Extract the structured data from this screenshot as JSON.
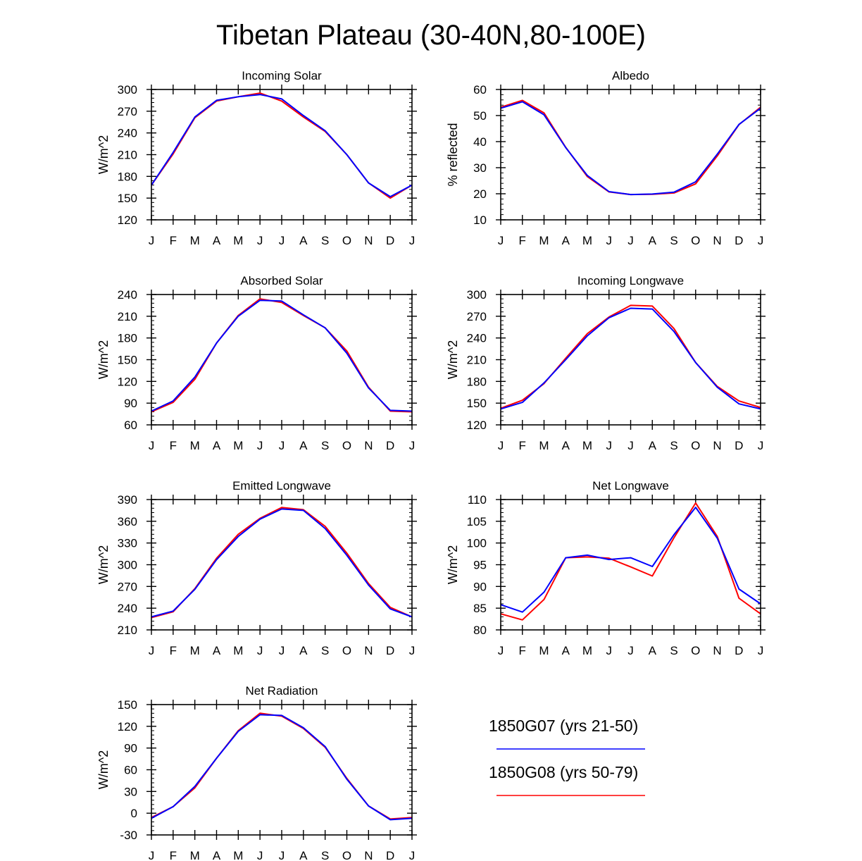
{
  "title": "Tibetan Plateau (30-40N,80-100E)",
  "colors": {
    "axis": "#000000",
    "series_G07": "#0000ff",
    "series_G08": "#ff0000"
  },
  "legend": [
    {
      "name": "1850G07 (yrs 21-50)",
      "color": "#0000ff"
    },
    {
      "name": "1850G08 (yrs 50-79)",
      "color": "#ff0000"
    }
  ],
  "chart_data": [
    {
      "type": "line",
      "title": "Incoming Solar",
      "xlabel": "",
      "ylabel": "W/m^2",
      "categories": [
        "J",
        "F",
        "M",
        "A",
        "M",
        "J",
        "J",
        "A",
        "S",
        "O",
        "N",
        "D",
        "J"
      ],
      "ylim": [
        120,
        300
      ],
      "yticks": [
        120,
        150,
        180,
        210,
        240,
        270,
        300
      ],
      "series": [
        {
          "name": "1850G07 (yrs 21-50)",
          "values": [
            168,
            213,
            262,
            285,
            290,
            293,
            287,
            264,
            243,
            210,
            171,
            152,
            168
          ]
        },
        {
          "name": "1850G08 (yrs 50-79)",
          "values": [
            168,
            211,
            261,
            284,
            290,
            295,
            284,
            262,
            242,
            210,
            171,
            150,
            168
          ]
        }
      ]
    },
    {
      "type": "line",
      "title": "Albedo",
      "xlabel": "",
      "ylabel": "% reflected",
      "categories": [
        "J",
        "F",
        "M",
        "A",
        "M",
        "J",
        "J",
        "A",
        "S",
        "O",
        "N",
        "D",
        "J"
      ],
      "ylim": [
        10,
        60
      ],
      "yticks": [
        10,
        20,
        30,
        40,
        50,
        60
      ],
      "series": [
        {
          "name": "1850G07 (yrs 21-50)",
          "values": [
            52.8,
            55.3,
            50.3,
            37.7,
            27.0,
            20.8,
            19.7,
            19.9,
            20.6,
            24.6,
            35.2,
            46.6,
            52.8
          ]
        },
        {
          "name": "1850G08 (yrs 50-79)",
          "values": [
            53.2,
            55.8,
            51.0,
            37.8,
            26.6,
            20.7,
            19.7,
            19.8,
            20.3,
            23.8,
            34.5,
            46.5,
            53.2
          ]
        }
      ]
    },
    {
      "type": "line",
      "title": "Absorbed Solar",
      "xlabel": "",
      "ylabel": "W/m^2",
      "categories": [
        "J",
        "F",
        "M",
        "A",
        "M",
        "J",
        "J",
        "A",
        "S",
        "O",
        "N",
        "D",
        "J"
      ],
      "ylim": [
        60,
        240
      ],
      "yticks": [
        60,
        90,
        120,
        150,
        180,
        210,
        240
      ],
      "series": [
        {
          "name": "1850G07 (yrs 21-50)",
          "values": [
            79,
            93,
            126,
            173,
            210,
            232,
            231,
            212,
            194,
            159,
            111,
            80,
            79
          ]
        },
        {
          "name": "1850G08 (yrs 50-79)",
          "values": [
            78,
            91,
            123,
            173,
            211,
            234,
            229,
            211,
            194,
            162,
            112,
            79,
            78
          ]
        }
      ]
    },
    {
      "type": "line",
      "title": "Incoming Longwave",
      "xlabel": "",
      "ylabel": "W/m^2",
      "categories": [
        "J",
        "F",
        "M",
        "A",
        "M",
        "J",
        "J",
        "A",
        "S",
        "O",
        "N",
        "D",
        "J"
      ],
      "ylim": [
        120,
        300
      ],
      "yticks": [
        120,
        150,
        180,
        210,
        240,
        270,
        300
      ],
      "series": [
        {
          "name": "1850G07 (yrs 21-50)",
          "values": [
            142,
            151,
            178,
            210,
            243,
            268,
            281,
            280,
            249,
            206,
            172,
            149,
            142
          ]
        },
        {
          "name": "1850G08 (yrs 50-79)",
          "values": [
            143,
            154,
            177,
            212,
            246,
            269,
            285,
            284,
            253,
            206,
            173,
            153,
            144
          ]
        }
      ]
    },
    {
      "type": "line",
      "title": "Emitted Longwave",
      "xlabel": "",
      "ylabel": "W/m^2",
      "categories": [
        "J",
        "F",
        "M",
        "A",
        "M",
        "J",
        "J",
        "A",
        "S",
        "O",
        "N",
        "D",
        "J"
      ],
      "ylim": [
        210,
        390
      ],
      "yticks": [
        210,
        240,
        270,
        300,
        330,
        360,
        390
      ],
      "series": [
        {
          "name": "1850G07 (yrs 21-50)",
          "values": [
            228,
            236,
            266,
            307,
            339,
            363,
            377,
            375,
            350,
            313,
            272,
            239,
            228
          ]
        },
        {
          "name": "1850G08 (yrs 50-79)",
          "values": [
            227,
            235,
            267,
            309,
            342,
            364,
            379,
            376,
            353,
            316,
            274,
            241,
            228
          ]
        }
      ]
    },
    {
      "type": "line",
      "title": "Net Longwave",
      "xlabel": "",
      "ylabel": "W/m^2",
      "categories": [
        "J",
        "F",
        "M",
        "A",
        "M",
        "J",
        "J",
        "A",
        "S",
        "O",
        "N",
        "D",
        "J"
      ],
      "ylim": [
        80,
        110
      ],
      "yticks": [
        80,
        85,
        90,
        95,
        100,
        105,
        110
      ],
      "series": [
        {
          "name": "1850G07 (yrs 21-50)",
          "values": [
            85.8,
            84.1,
            88.7,
            96.6,
            97.2,
            96.2,
            96.6,
            94.6,
            101.9,
            108.2,
            101.1,
            89.4,
            86.0
          ]
        },
        {
          "name": "1850G08 (yrs 50-79)",
          "values": [
            83.7,
            82.3,
            87.0,
            96.6,
            96.8,
            96.5,
            94.5,
            92.4,
            101.2,
            109.2,
            101.5,
            87.3,
            83.7
          ]
        }
      ]
    },
    {
      "type": "line",
      "title": "Net Radiation",
      "xlabel": "",
      "ylabel": "W/m^2",
      "categories": [
        "J",
        "F",
        "M",
        "A",
        "M",
        "J",
        "J",
        "A",
        "S",
        "O",
        "N",
        "D",
        "J"
      ],
      "ylim": [
        -30,
        150
      ],
      "yticks": [
        -30,
        0,
        30,
        60,
        90,
        120,
        150
      ],
      "series": [
        {
          "name": "1850G07 (yrs 21-50)",
          "values": [
            -7,
            9,
            37,
            76,
            113,
            136,
            135,
            118,
            92,
            47,
            10,
            -9,
            -7
          ]
        },
        {
          "name": "1850G08 (yrs 50-79)",
          "values": [
            -6,
            9,
            35,
            76,
            114,
            138,
            134,
            117,
            91,
            48,
            10,
            -8,
            -6
          ]
        }
      ]
    }
  ]
}
